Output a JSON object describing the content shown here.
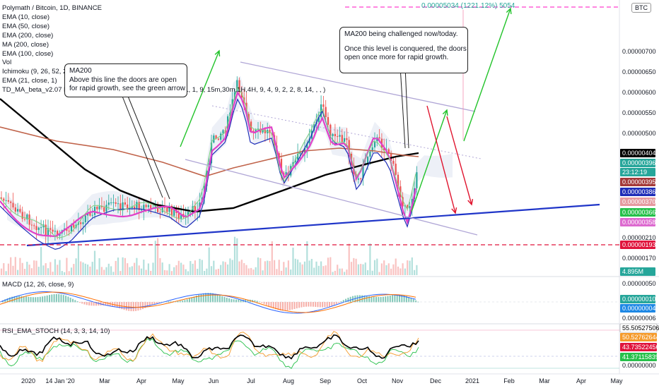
{
  "header": {
    "symbol": "Polymath / Bitcoin, 1D, BINANCE",
    "indicators": [
      "EMA (10, close)",
      "EMA (50, close)",
      "EMA (200, close)",
      "MA (200, close)",
      "EMA (100, close)",
      "Vol",
      "Ichimoku (9, 26, 52, 26)",
      "EMA (21, close, 1)",
      "TD_MA_beta_v2.07 by JDLim (Version 1, Standard, 3, 80, 2, 1, 1, 9, 15m,30m,1H,4H, 9, 4, 9, 2, 2, 8, 14, , , )"
    ],
    "currency_badge": "BTC"
  },
  "notes": {
    "ma200_note": [
      "MA200",
      "Above this line the doors are open",
      "for rapid growth, see the green arrow"
    ],
    "challenge_note": [
      "MA200 being challenged now/today.",
      "",
      "Once this level is conquered, the doors",
      "open once more for rapid growth."
    ]
  },
  "target_label": "0.00005034 (1221.12%) 5054",
  "panes": {
    "macd_label": "MACD (12, 26, close, 9)",
    "rsi_label": "RSI_EMA_STOCH (14, 3, 3, 14, 10)"
  },
  "colors": {
    "candle_up": "#26a69a",
    "candle_down": "#ef5350",
    "ma200": "#000000",
    "ema200": "#c0634a",
    "ema50": "#1e2db8",
    "ema21": "#e040c8",
    "trendline": "#1f35c8",
    "channel": "#b0a6d6",
    "red_dashed": "#e0143c",
    "magenta_dashed": "#ff3dcd",
    "arrow_green": "#22c32a",
    "arrow_red": "#e0142e"
  },
  "chart_data": [
    {
      "type": "candlestick",
      "title": "Polymath / Bitcoin, 1D, BINANCE",
      "x_ticks": [
        "2020",
        "14 Jan '20",
        "Mar",
        "Apr",
        "May",
        "Jun",
        "Jul",
        "Aug",
        "Sep",
        "Oct",
        "Nov",
        "Dec",
        "2021",
        "Feb",
        "Mar",
        "Apr",
        "May"
      ],
      "y_axis_ticks": [
        "0.00000700",
        "0.00000650",
        "0.00000600",
        "0.00000550",
        "0.00000500",
        "0.00000450",
        "0.00000210",
        "0.00000170"
      ],
      "price_labels": [
        {
          "text": "0.00000404",
          "bg": "#000000",
          "fg": "#ffffff"
        },
        {
          "text": "0.00000396",
          "bg": "#26a69a",
          "fg": "#ffffff"
        },
        {
          "text": "23:12:19",
          "bg": "#26a69a",
          "fg": "#ffffff"
        },
        {
          "text": "0.00000395",
          "bg": "#a43a3a",
          "fg": "#ffffff"
        },
        {
          "text": "0.00000386",
          "bg": "#1e2db8",
          "fg": "#ffffff"
        },
        {
          "text": "0.00000370",
          "bg": "#e59aa0",
          "fg": "#ffffff"
        },
        {
          "text": "0.00000366",
          "bg": "#26c04a",
          "fg": "#ffffff"
        },
        {
          "text": "0.00000358",
          "bg": "#dd6ad0",
          "fg": "#ffffff"
        },
        {
          "text": "0.00000193",
          "bg": "#e0143c",
          "fg": "#ffffff"
        },
        {
          "text": "4.895M",
          "bg": "#26a69a",
          "fg": "#ffffff"
        }
      ],
      "target": "0.00005034 (1221.12%) 5054",
      "lines": [
        "EMA (10, close)",
        "EMA (50, close)",
        "EMA (200, close)",
        "MA (200, close)",
        "EMA (100, close)",
        "EMA (21, close, 1)"
      ]
    },
    {
      "type": "line",
      "title": "MACD (12, 26, close, 9)",
      "y_axis_ticks": [
        "0.00000050",
        "0.00000006"
      ],
      "price_labels": [
        {
          "text": "0.00000010",
          "bg": "#26a69a",
          "fg": "#ffffff"
        },
        {
          "text": "0.00000004",
          "bg": "#1e88e5",
          "fg": "#ffffff"
        }
      ]
    },
    {
      "type": "line",
      "title": "RSI_EMA_STOCH (14, 3, 3, 14, 10)",
      "y_axis_ticks": [
        "0.00000000"
      ],
      "price_labels": [
        {
          "text": "55.50527506",
          "bg": "#ffffff",
          "fg": "#000000"
        },
        {
          "text": "50.52762644",
          "bg": "#f59a2a",
          "fg": "#ffffff"
        },
        {
          "text": "43.73522456",
          "bg": "#e0143c",
          "fg": "#ffffff"
        },
        {
          "text": "41.37115839",
          "bg": "#26c04a",
          "fg": "#ffffff"
        }
      ]
    }
  ]
}
